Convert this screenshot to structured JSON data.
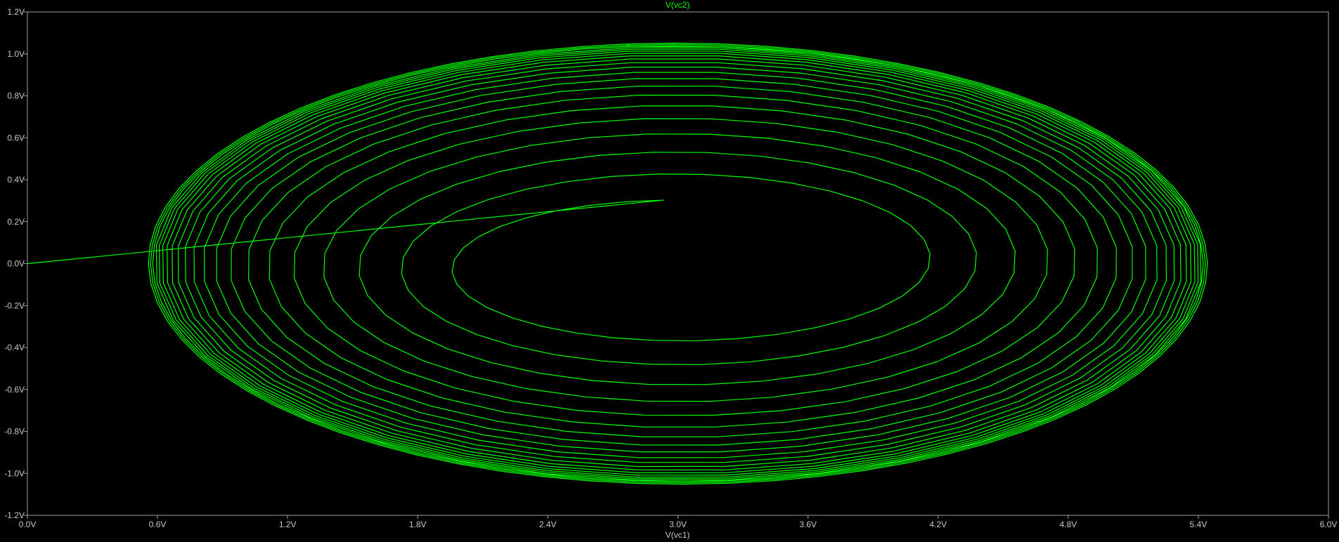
{
  "chart_data": {
    "type": "line",
    "title": "V(vc2)",
    "xlabel": "V(vc1)",
    "ylabel": "",
    "xlim": [
      0.0,
      6.0
    ],
    "ylim": [
      -1.2,
      1.2
    ],
    "grid": false,
    "x_ticks": [
      "0.0V",
      "0.6V",
      "1.2V",
      "1.8V",
      "2.4V",
      "3.0V",
      "3.6V",
      "4.2V",
      "4.8V",
      "5.4V",
      "6.0V"
    ],
    "y_ticks": [
      "1.2V",
      "1.0V",
      "0.8V",
      "0.6V",
      "0.4V",
      "0.2V",
      "0.0V",
      "-0.2V",
      "-0.4V",
      "-0.6V",
      "-0.8V",
      "-1.0V",
      "-1.2V"
    ],
    "series": [
      {
        "name": "V(vc2)",
        "color": "#00ff00",
        "trajectory": {
          "start": [
            0.0,
            0.0
          ],
          "center": [
            3.0,
            0.0
          ],
          "initial_semi_axes": [
            1.0,
            0.31
          ],
          "limit_cycle_semi_axes": [
            2.47,
            1.06
          ],
          "tilt_degrees": 12.5,
          "turns": 18
        }
      }
    ]
  },
  "colors": {
    "background": "#000000",
    "frame": "#a0a0a0",
    "trace": "#00ff00",
    "tick_text": "#c8c8c8"
  }
}
